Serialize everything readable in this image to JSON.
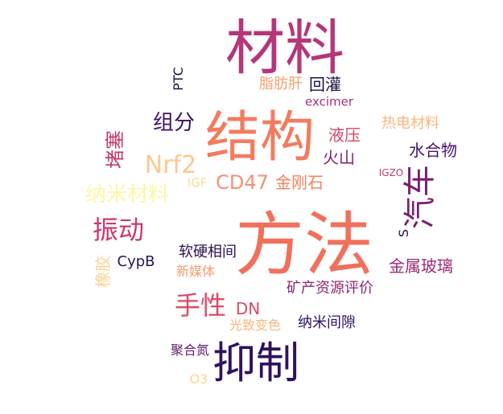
{
  "words": [
    {
      "text": "材料",
      "color": "#b5367a"
    },
    {
      "text": "结构",
      "color": "#f37b5e"
    },
    {
      "text": "方法",
      "color": "#f1705c"
    },
    {
      "text": "抑制",
      "color": "#2f1160"
    },
    {
      "text": "汽车",
      "color": "#7a1d6e"
    },
    {
      "text": "Nrf2",
      "color": "#fcc98d"
    },
    {
      "text": "CD47",
      "color": "#f39270"
    },
    {
      "text": "振动",
      "color": "#c8396f"
    },
    {
      "text": "手性",
      "color": "#d94a69"
    },
    {
      "text": "组分",
      "color": "#3b1466"
    },
    {
      "text": "纳米材料",
      "color": "#fdf6a8"
    },
    {
      "text": "回灌",
      "color": "#1e0f42"
    },
    {
      "text": "脂肪肝",
      "color": "#f4a070"
    },
    {
      "text": "液压",
      "color": "#cf4468"
    },
    {
      "text": "火山",
      "color": "#7e1f6e"
    },
    {
      "text": "水合物",
      "color": "#47136b"
    },
    {
      "text": "热电材料",
      "color": "#fbb47c"
    },
    {
      "text": "金刚石",
      "color": "#f2825c"
    },
    {
      "text": "金属玻璃",
      "color": "#9c2a76"
    },
    {
      "text": "软硬相间",
      "color": "#2a0f55"
    },
    {
      "text": "矿产资源评价",
      "color": "#8e2474"
    },
    {
      "text": "新媒体",
      "color": "#f69a6a"
    },
    {
      "text": "CypB",
      "color": "#2c1260"
    },
    {
      "text": "DN",
      "color": "#d94b6c"
    },
    {
      "text": "光致变色",
      "color": "#fbb57d"
    },
    {
      "text": "纳米间隙",
      "color": "#2c1160"
    },
    {
      "text": "聚合氮",
      "color": "#601c6e"
    },
    {
      "text": "O3",
      "color": "#fcd19a"
    },
    {
      "text": "excimer",
      "color": "#a5307a"
    },
    {
      "text": "IGF",
      "color": "#fcdb9e"
    },
    {
      "text": "IGZO",
      "color": "#c53c6c"
    },
    {
      "text": "PTC",
      "color": "#1c0d3d"
    },
    {
      "text": "堵塞",
      "color": "#c5386e"
    },
    {
      "text": "橡胶",
      "color": "#fbd393"
    },
    {
      "text": "S",
      "color": "#28104f"
    }
  ]
}
